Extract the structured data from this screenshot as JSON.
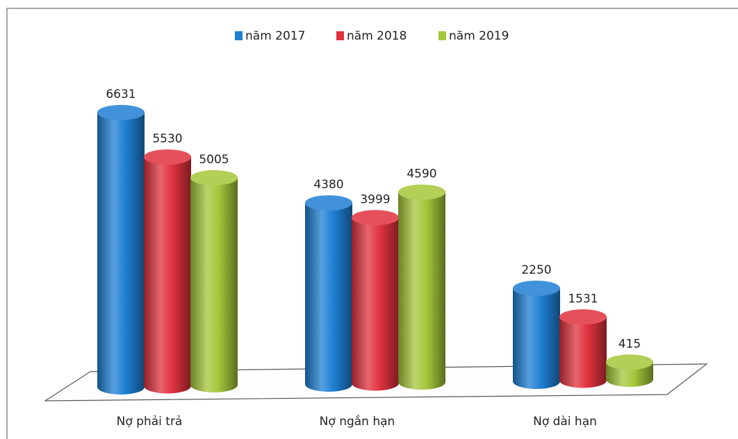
{
  "chart_data": {
    "type": "bar3d",
    "categories": [
      "Nợ phải trả",
      "Nợ ngắn hạn",
      "Nợ dài hạn"
    ],
    "series": [
      {
        "name": "năm 2017",
        "color": "#1f7fd3",
        "values": [
          6631,
          4380,
          2250
        ]
      },
      {
        "name": "năm 2018",
        "color": "#e0323e",
        "values": [
          5530,
          3999,
          1531
        ]
      },
      {
        "name": "năm 2019",
        "color": "#a5c63b",
        "values": [
          5005,
          4590,
          415
        ]
      }
    ],
    "legend": "top"
  }
}
